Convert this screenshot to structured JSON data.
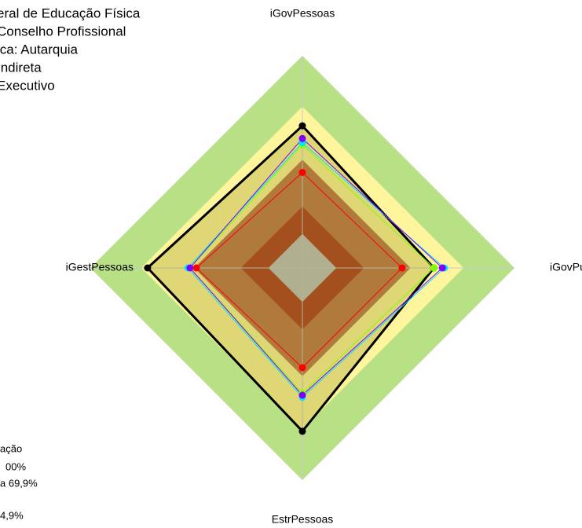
{
  "chart_data": {
    "type": "radar",
    "title_lines": [
      "eral de Educação Física",
      " Conselho Profissional",
      "ica: Autarquia",
      " Indireta",
      " Executivo"
    ],
    "legend_lines": [
      "ação",
      "00%",
      "a 69,9%",
      "4,9%"
    ],
    "categories": [
      "iGovPessoas",
      "iGovPub",
      "EstrPessoas",
      "iGestPessoas"
    ],
    "rlim": [
      0,
      100
    ],
    "bands": [
      {
        "color": "#b8e186",
        "value": 100
      },
      {
        "color": "#fff59d",
        "value": 76
      },
      {
        "color": "#c07850",
        "value": 51
      },
      {
        "color": "#b04028",
        "value": 29
      },
      {
        "color": "#c0c0c0",
        "value": 16
      }
    ],
    "series": [
      {
        "color": "#000000",
        "fill": "#808000",
        "values": [
          67,
          62,
          77,
          73
        ]
      },
      {
        "color": "#ff0000",
        "values": [
          45,
          47,
          47,
          50
        ]
      },
      {
        "color": "#80ff00",
        "values": [
          58,
          62,
          59,
          53
        ]
      },
      {
        "color": "#00e5ff",
        "values": [
          59,
          67,
          61,
          54
        ]
      },
      {
        "color": "#7f00ff",
        "values": [
          61,
          66,
          60,
          53
        ]
      }
    ]
  }
}
